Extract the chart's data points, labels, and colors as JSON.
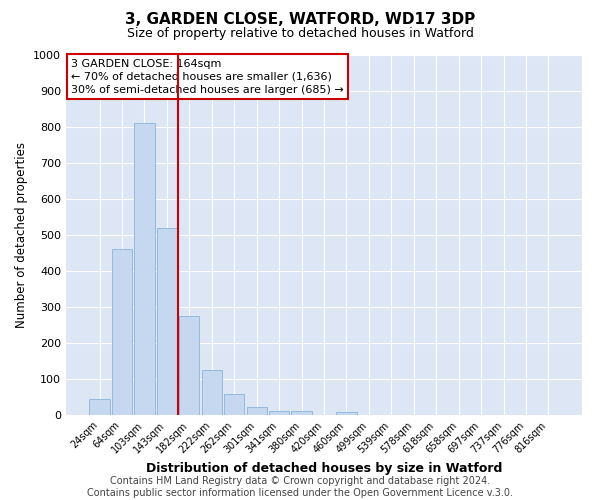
{
  "title": "3, GARDEN CLOSE, WATFORD, WD17 3DP",
  "subtitle": "Size of property relative to detached houses in Watford",
  "xlabel": "Distribution of detached houses by size in Watford",
  "ylabel": "Number of detached properties",
  "bar_labels": [
    "24sqm",
    "64sqm",
    "103sqm",
    "143sqm",
    "182sqm",
    "222sqm",
    "262sqm",
    "301sqm",
    "341sqm",
    "380sqm",
    "420sqm",
    "460sqm",
    "499sqm",
    "539sqm",
    "578sqm",
    "618sqm",
    "658sqm",
    "697sqm",
    "737sqm",
    "776sqm",
    "816sqm"
  ],
  "bar_values": [
    45,
    460,
    810,
    520,
    275,
    125,
    58,
    22,
    10,
    10,
    0,
    8,
    0,
    0,
    0,
    0,
    0,
    0,
    0,
    0,
    0
  ],
  "bar_color": "#c5d8f0",
  "bar_edge_color": "#8ab4d8",
  "vline_x": 3.5,
  "vline_color": "#cc0000",
  "annotation_text": "3 GARDEN CLOSE: 164sqm\n← 70% of detached houses are smaller (1,636)\n30% of semi-detached houses are larger (685) →",
  "annotation_box_color": "#ffffff",
  "annotation_box_edge_color": "#cc0000",
  "annotation_fontsize": 8.0,
  "ylim": [
    0,
    1000
  ],
  "yticks": [
    0,
    100,
    200,
    300,
    400,
    500,
    600,
    700,
    800,
    900,
    1000
  ],
  "plot_bg_color": "#dce6f5",
  "fig_bg_color": "#ffffff",
  "grid_color": "#ffffff",
  "title_fontsize": 11,
  "subtitle_fontsize": 9,
  "footer_text": "Contains HM Land Registry data © Crown copyright and database right 2024.\nContains public sector information licensed under the Open Government Licence v.3.0.",
  "footer_fontsize": 7
}
